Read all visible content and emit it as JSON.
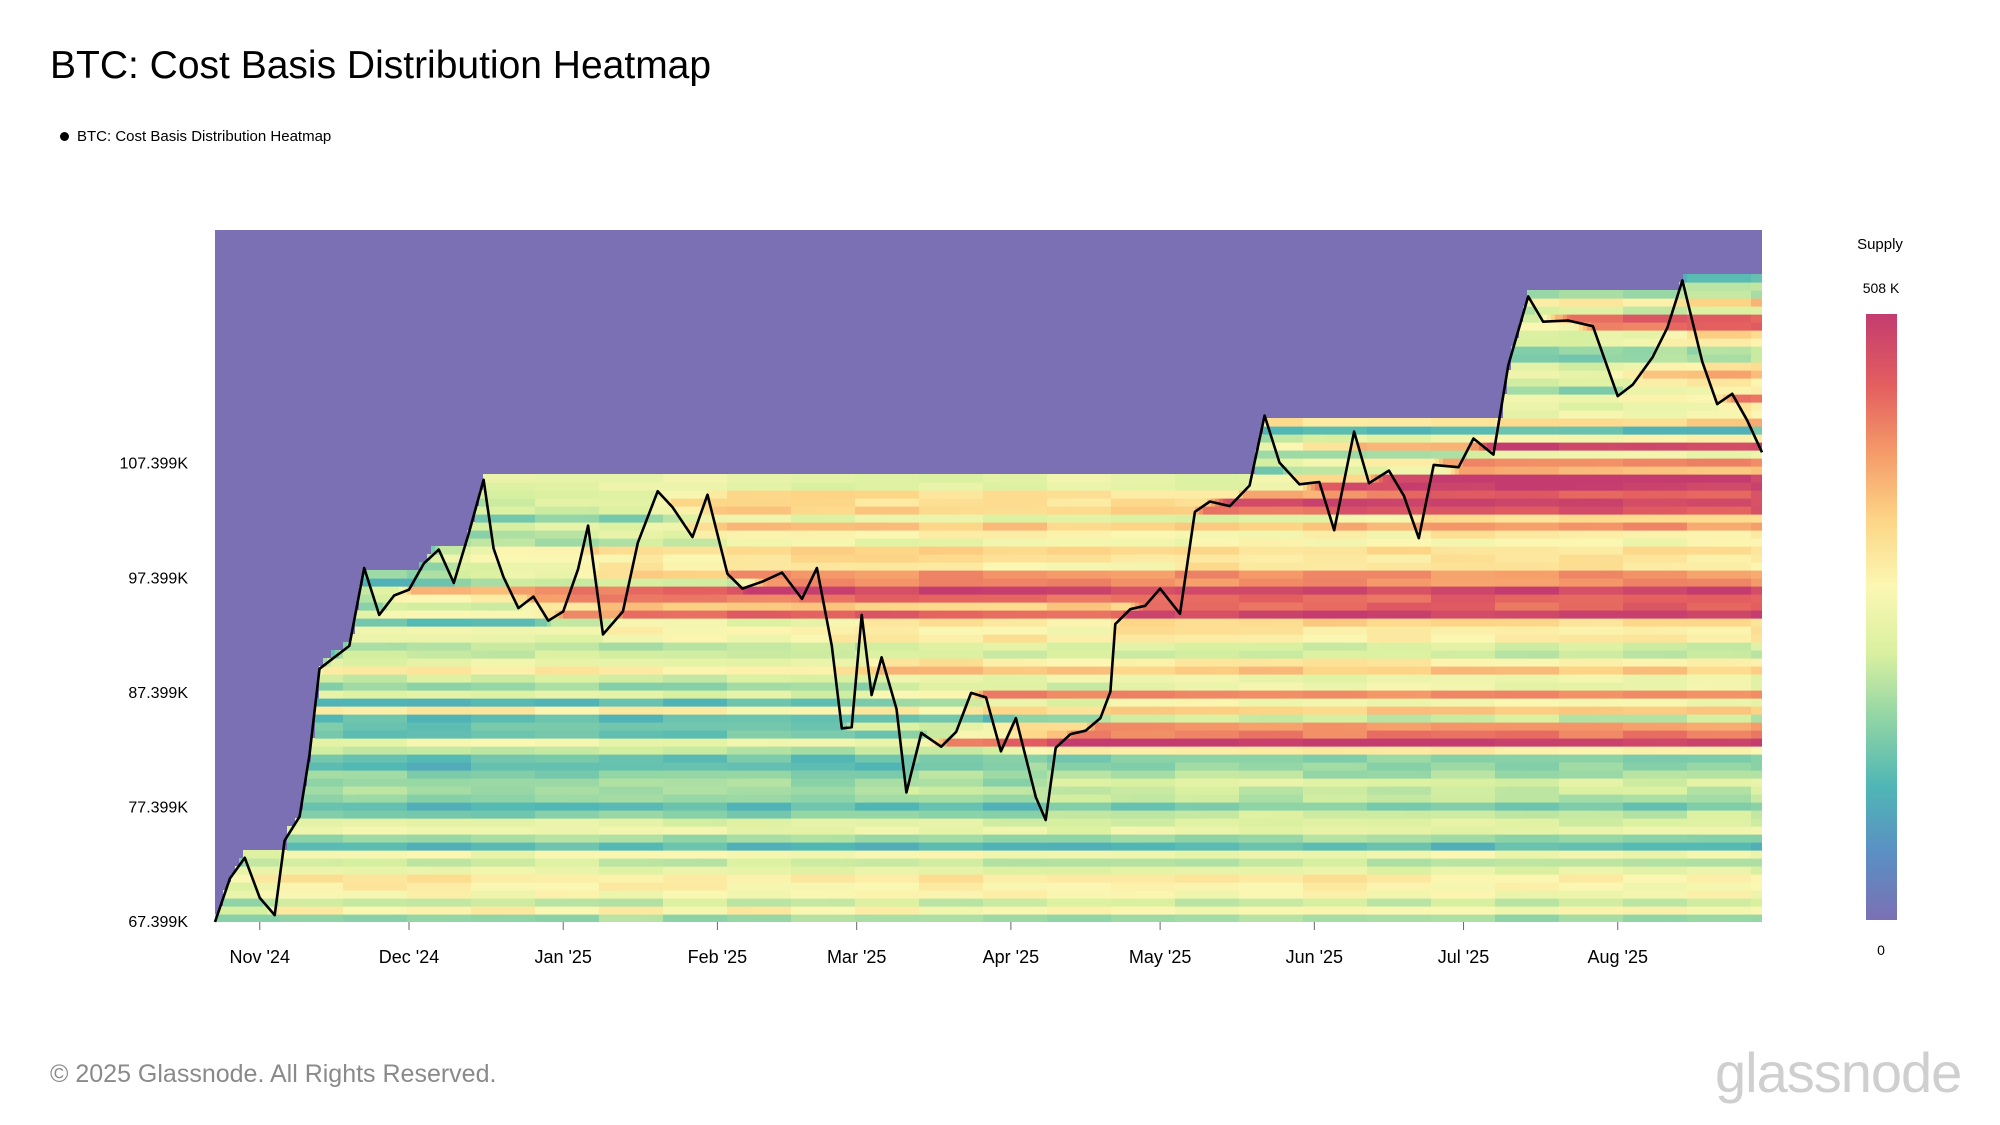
{
  "header": {
    "title": "BTC: Cost Basis Distribution Heatmap"
  },
  "legend": {
    "label": "BTC: Cost Basis Distribution Heatmap"
  },
  "footer": {
    "copyright": "© 2025 Glassnode. All Rights Reserved."
  },
  "brand": {
    "logo_text": "glassnode"
  },
  "colorbar": {
    "title": "Supply",
    "max_label": "508 K",
    "min_label": "0"
  },
  "colors": {
    "background_fill": "#7b70b4",
    "price_line": "#000000",
    "scale": [
      "#7b70b4",
      "#5b8fc4",
      "#4fb6b5",
      "#8fd4a6",
      "#d9f0a0",
      "#fbf7b3",
      "#fdd586",
      "#f59b69",
      "#e35f5f",
      "#c43c6f"
    ]
  },
  "chart_data": {
    "type": "heatmap",
    "title": "BTC: Cost Basis Distribution Heatmap",
    "xlabel": "",
    "ylabel": "",
    "x_tick_labels": [
      "Nov '24",
      "Dec '24",
      "Jan '25",
      "Feb '25",
      "Mar '25",
      "Apr '25",
      "May '25",
      "Jun '25",
      "Jul '25",
      "Aug '25"
    ],
    "y_tick_labels": [
      "67.399K",
      "77.399K",
      "87.399K",
      "97.399K",
      "107.399K"
    ],
    "x_range": [
      "2024-10-23",
      "2025-08-30"
    ],
    "y_range": [
      67399,
      127800
    ],
    "color_range": [
      0,
      508000
    ],
    "series": [
      {
        "name": "BTC: Cost Basis Distribution Heatmap",
        "type": "line",
        "points": [
          [
            "2024-10-23",
            67399
          ],
          [
            "2024-10-26",
            71200
          ],
          [
            "2024-10-29",
            73000
          ],
          [
            "2024-11-01",
            69500
          ],
          [
            "2024-11-04",
            68000
          ],
          [
            "2024-11-06",
            74500
          ],
          [
            "2024-11-09",
            76600
          ],
          [
            "2024-11-11",
            82000
          ],
          [
            "2024-11-13",
            89500
          ],
          [
            "2024-11-16",
            90500
          ],
          [
            "2024-11-19",
            91500
          ],
          [
            "2024-11-22",
            98300
          ],
          [
            "2024-11-25",
            94200
          ],
          [
            "2024-11-28",
            95900
          ],
          [
            "2024-12-01",
            96400
          ],
          [
            "2024-12-04",
            98700
          ],
          [
            "2024-12-07",
            99900
          ],
          [
            "2024-12-10",
            97000
          ],
          [
            "2024-12-13",
            101300
          ],
          [
            "2024-12-16",
            106000
          ],
          [
            "2024-12-18",
            100000
          ],
          [
            "2024-12-20",
            97500
          ],
          [
            "2024-12-23",
            94800
          ],
          [
            "2024-12-26",
            95800
          ],
          [
            "2024-12-29",
            93700
          ],
          [
            "2025-01-01",
            94500
          ],
          [
            "2025-01-04",
            98200
          ],
          [
            "2025-01-06",
            102000
          ],
          [
            "2025-01-09",
            92500
          ],
          [
            "2025-01-13",
            94500
          ],
          [
            "2025-01-16",
            100500
          ],
          [
            "2025-01-20",
            105000
          ],
          [
            "2025-01-23",
            103600
          ],
          [
            "2025-01-27",
            101000
          ],
          [
            "2025-01-30",
            104700
          ],
          [
            "2025-02-03",
            97800
          ],
          [
            "2025-02-06",
            96500
          ],
          [
            "2025-02-10",
            97100
          ],
          [
            "2025-02-14",
            97900
          ],
          [
            "2025-02-18",
            95600
          ],
          [
            "2025-02-21",
            98300
          ],
          [
            "2025-02-24",
            91500
          ],
          [
            "2025-02-26",
            84300
          ],
          [
            "2025-02-28",
            84400
          ],
          [
            "2025-03-02",
            94200
          ],
          [
            "2025-03-04",
            87200
          ],
          [
            "2025-03-06",
            90500
          ],
          [
            "2025-03-09",
            86000
          ],
          [
            "2025-03-11",
            78700
          ],
          [
            "2025-03-14",
            83900
          ],
          [
            "2025-03-18",
            82700
          ],
          [
            "2025-03-21",
            84000
          ],
          [
            "2025-03-24",
            87400
          ],
          [
            "2025-03-27",
            87000
          ],
          [
            "2025-03-30",
            82300
          ],
          [
            "2025-04-02",
            85200
          ],
          [
            "2025-04-06",
            78300
          ],
          [
            "2025-04-08",
            76300
          ],
          [
            "2025-04-10",
            82600
          ],
          [
            "2025-04-13",
            83800
          ],
          [
            "2025-04-16",
            84100
          ],
          [
            "2025-04-19",
            85200
          ],
          [
            "2025-04-21",
            87500
          ],
          [
            "2025-04-22",
            93400
          ],
          [
            "2025-04-25",
            94700
          ],
          [
            "2025-04-28",
            95000
          ],
          [
            "2025-05-01",
            96500
          ],
          [
            "2025-05-05",
            94300
          ],
          [
            "2025-05-08",
            103200
          ],
          [
            "2025-05-11",
            104100
          ],
          [
            "2025-05-15",
            103700
          ],
          [
            "2025-05-19",
            105500
          ],
          [
            "2025-05-22",
            111600
          ],
          [
            "2025-05-25",
            107500
          ],
          [
            "2025-05-29",
            105600
          ],
          [
            "2025-06-02",
            105800
          ],
          [
            "2025-06-05",
            101600
          ],
          [
            "2025-06-09",
            110200
          ],
          [
            "2025-06-12",
            105700
          ],
          [
            "2025-06-16",
            106800
          ],
          [
            "2025-06-19",
            104600
          ],
          [
            "2025-06-22",
            100900
          ],
          [
            "2025-06-25",
            107300
          ],
          [
            "2025-06-30",
            107100
          ],
          [
            "2025-07-03",
            109600
          ],
          [
            "2025-07-07",
            108200
          ],
          [
            "2025-07-10",
            116000
          ],
          [
            "2025-07-14",
            122000
          ],
          [
            "2025-07-17",
            119800
          ],
          [
            "2025-07-22",
            119900
          ],
          [
            "2025-07-27",
            119400
          ],
          [
            "2025-08-01",
            113300
          ],
          [
            "2025-08-04",
            114300
          ],
          [
            "2025-08-08",
            116700
          ],
          [
            "2025-08-11",
            119300
          ],
          [
            "2025-08-14",
            123400
          ],
          [
            "2025-08-18",
            116300
          ],
          [
            "2025-08-21",
            112600
          ],
          [
            "2025-08-24",
            113500
          ],
          [
            "2025-08-27",
            111200
          ],
          [
            "2025-08-30",
            108400
          ]
        ]
      }
    ],
    "legend_position": "top-left",
    "grid": false
  }
}
